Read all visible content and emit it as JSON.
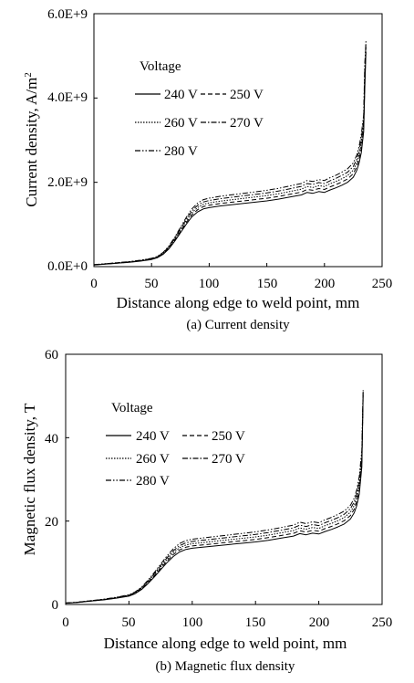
{
  "chart_data": [
    {
      "type": "line",
      "caption": "(a) Current density",
      "xlabel": "Distance along edge to weld point, mm",
      "ylabel_main": "Current density, A/m",
      "ylabel_sup": "2",
      "xlim": [
        0,
        250
      ],
      "ylim": [
        0,
        6000000000
      ],
      "x_ticks": [
        "0",
        "50",
        "100",
        "150",
        "200",
        "250"
      ],
      "y_ticks": [
        "0.0E+0",
        "2.0E+9",
        "4.0E+9",
        "6.0E+9"
      ],
      "grid": false,
      "legend": {
        "title": "Voltage",
        "position": "top-left"
      },
      "series": [
        {
          "name": "240 V",
          "dash": "solid",
          "x": [
            0,
            10,
            20,
            30,
            40,
            50,
            55,
            60,
            65,
            70,
            75,
            80,
            85,
            90,
            95,
            100,
            110,
            120,
            130,
            140,
            150,
            160,
            170,
            180,
            185,
            190,
            195,
            200,
            205,
            210,
            215,
            220,
            225,
            228,
            230,
            232,
            234,
            235,
            236
          ],
          "y": [
            40000000,
            60000000,
            80000000,
            100000000,
            130000000,
            170000000,
            210000000,
            290000000,
            420000000,
            600000000,
            800000000,
            1000000000,
            1180000000,
            1300000000,
            1370000000,
            1400000000,
            1440000000,
            1470000000,
            1500000000,
            1530000000,
            1560000000,
            1600000000,
            1650000000,
            1700000000,
            1760000000,
            1740000000,
            1780000000,
            1760000000,
            1820000000,
            1870000000,
            1930000000,
            2000000000,
            2120000000,
            2280000000,
            2450000000,
            2700000000,
            3200000000,
            4200000000,
            5100000000
          ]
        },
        {
          "name": "250 V",
          "dash": "dash",
          "x": [
            0,
            10,
            20,
            30,
            40,
            50,
            55,
            60,
            65,
            70,
            75,
            80,
            85,
            90,
            95,
            100,
            110,
            120,
            130,
            140,
            150,
            160,
            170,
            180,
            185,
            190,
            195,
            200,
            205,
            210,
            215,
            220,
            225,
            228,
            230,
            232,
            234,
            235,
            236
          ],
          "y": [
            42000000,
            62000000,
            83000000,
            104000000,
            135000000,
            177000000,
            218000000,
            302000000,
            437000000,
            624000000,
            832000000,
            1040000000,
            1227000000,
            1352000000,
            1425000000,
            1456000000,
            1498000000,
            1529000000,
            1560000000,
            1591000000,
            1622000000,
            1664000000,
            1716000000,
            1768000000,
            1830000000,
            1810000000,
            1851000000,
            1830000000,
            1893000000,
            1945000000,
            2007000000,
            2080000000,
            2205000000,
            2371000000,
            2548000000,
            2808000000,
            3300000000,
            4350000000,
            5200000000
          ]
        },
        {
          "name": "260 V",
          "dash": "dot",
          "x": [
            0,
            10,
            20,
            30,
            40,
            50,
            55,
            60,
            65,
            70,
            75,
            80,
            85,
            90,
            95,
            100,
            110,
            120,
            130,
            140,
            150,
            160,
            170,
            180,
            185,
            190,
            195,
            200,
            205,
            210,
            215,
            220,
            225,
            228,
            230,
            232,
            234,
            235,
            236
          ],
          "y": [
            43000000,
            65000000,
            86000000,
            108000000,
            140000000,
            184000000,
            227000000,
            313000000,
            454000000,
            648000000,
            864000000,
            1080000000,
            1274000000,
            1404000000,
            1480000000,
            1512000000,
            1555000000,
            1588000000,
            1620000000,
            1652000000,
            1685000000,
            1728000000,
            1782000000,
            1836000000,
            1901000000,
            1879000000,
            1922000000,
            1901000000,
            1966000000,
            2020000000,
            2084000000,
            2160000000,
            2290000000,
            2462000000,
            2646000000,
            2916000000,
            3400000000,
            4500000000,
            5250000000
          ]
        },
        {
          "name": "270 V",
          "dash": "dashdot",
          "x": [
            0,
            10,
            20,
            30,
            40,
            50,
            55,
            60,
            65,
            70,
            75,
            80,
            85,
            90,
            95,
            100,
            110,
            120,
            130,
            140,
            150,
            160,
            170,
            180,
            185,
            190,
            195,
            200,
            205,
            210,
            215,
            220,
            225,
            228,
            230,
            232,
            234,
            235,
            236
          ],
          "y": [
            45000000,
            67000000,
            90000000,
            112000000,
            146000000,
            190000000,
            235000000,
            325000000,
            470000000,
            672000000,
            896000000,
            1120000000,
            1322000000,
            1456000000,
            1534000000,
            1568000000,
            1613000000,
            1646000000,
            1680000000,
            1714000000,
            1747000000,
            1792000000,
            1848000000,
            1904000000,
            1971000000,
            1949000000,
            1994000000,
            1971000000,
            2038000000,
            2094000000,
            2162000000,
            2240000000,
            2374000000,
            2554000000,
            2744000000,
            3024000000,
            3500000000,
            4650000000,
            5300000000
          ]
        },
        {
          "name": "280 V",
          "dash": "dashdotdot",
          "x": [
            0,
            10,
            20,
            30,
            40,
            50,
            55,
            60,
            65,
            70,
            75,
            80,
            85,
            90,
            95,
            100,
            110,
            120,
            130,
            140,
            150,
            160,
            170,
            180,
            185,
            190,
            195,
            200,
            205,
            210,
            215,
            220,
            225,
            228,
            230,
            232,
            234,
            235,
            236
          ],
          "y": [
            46000000,
            70000000,
            93000000,
            116000000,
            151000000,
            197000000,
            244000000,
            336000000,
            487000000,
            696000000,
            928000000,
            1160000000,
            1369000000,
            1508000000,
            1589000000,
            1624000000,
            1670000000,
            1705000000,
            1740000000,
            1775000000,
            1810000000,
            1856000000,
            1914000000,
            1972000000,
            2042000000,
            2018000000,
            2065000000,
            2042000000,
            2111000000,
            2169000000,
            2239000000,
            2320000000,
            2459000000,
            2645000000,
            2842000000,
            3132000000,
            3600000000,
            4800000000,
            5350000000
          ]
        }
      ]
    },
    {
      "type": "line",
      "caption": "(b) Magnetic flux density",
      "xlabel": "Distance along edge to weld point, mm",
      "ylabel_main": "Magnetic flux density, T",
      "ylabel_sup": "",
      "xlim": [
        0,
        250
      ],
      "ylim": [
        0,
        60
      ],
      "x_ticks": [
        "0",
        "50",
        "100",
        "150",
        "200",
        "250"
      ],
      "y_ticks": [
        "0",
        "20",
        "40",
        "60"
      ],
      "grid": false,
      "legend": {
        "title": "Voltage",
        "position": "top-left"
      },
      "series": [
        {
          "name": "240 V",
          "dash": "solid",
          "x": [
            0,
            10,
            20,
            30,
            40,
            50,
            55,
            60,
            65,
            70,
            75,
            80,
            85,
            90,
            95,
            100,
            110,
            120,
            130,
            140,
            150,
            160,
            170,
            180,
            185,
            190,
            195,
            200,
            205,
            210,
            215,
            220,
            225,
            228,
            230,
            232,
            234,
            235
          ],
          "y": [
            0.3,
            0.5,
            0.8,
            1.1,
            1.5,
            2.0,
            2.6,
            3.6,
            5.0,
            6.6,
            8.3,
            10.0,
            11.5,
            12.6,
            13.2,
            13.5,
            13.8,
            14.1,
            14.4,
            14.7,
            15.0,
            15.4,
            15.9,
            16.4,
            17.0,
            16.7,
            17.1,
            16.9,
            17.5,
            18.0,
            18.6,
            19.3,
            20.5,
            22.0,
            23.7,
            26.5,
            33.0,
            50.0
          ]
        },
        {
          "name": "250 V",
          "dash": "dash",
          "x": [
            0,
            10,
            20,
            30,
            40,
            50,
            55,
            60,
            65,
            70,
            75,
            80,
            85,
            90,
            95,
            100,
            110,
            120,
            130,
            140,
            150,
            160,
            170,
            180,
            185,
            190,
            195,
            200,
            205,
            210,
            215,
            220,
            225,
            228,
            230,
            232,
            234,
            235
          ],
          "y": [
            0.31,
            0.52,
            0.83,
            1.14,
            1.56,
            2.08,
            2.7,
            3.74,
            5.2,
            6.86,
            8.63,
            10.4,
            11.96,
            13.1,
            13.73,
            14.04,
            14.35,
            14.66,
            14.98,
            15.29,
            15.6,
            16.02,
            16.54,
            17.06,
            17.68,
            17.37,
            17.78,
            17.58,
            18.2,
            18.72,
            19.34,
            20.07,
            21.32,
            22.88,
            24.65,
            27.56,
            34.0,
            50.5
          ]
        },
        {
          "name": "260 V",
          "dash": "dot",
          "x": [
            0,
            10,
            20,
            30,
            40,
            50,
            55,
            60,
            65,
            70,
            75,
            80,
            85,
            90,
            95,
            100,
            110,
            120,
            130,
            140,
            150,
            160,
            170,
            180,
            185,
            190,
            195,
            200,
            205,
            210,
            215,
            220,
            225,
            228,
            230,
            232,
            234,
            235
          ],
          "y": [
            0.32,
            0.54,
            0.86,
            1.19,
            1.62,
            2.16,
            2.81,
            3.89,
            5.4,
            7.13,
            8.96,
            10.8,
            12.42,
            13.61,
            14.26,
            14.58,
            14.9,
            15.23,
            15.55,
            15.88,
            16.2,
            16.63,
            17.17,
            17.71,
            18.36,
            18.04,
            18.47,
            18.25,
            18.9,
            19.44,
            20.09,
            20.84,
            22.14,
            23.76,
            25.6,
            28.62,
            35.0,
            50.8
          ]
        },
        {
          "name": "270 V",
          "dash": "dashdot",
          "x": [
            0,
            10,
            20,
            30,
            40,
            50,
            55,
            60,
            65,
            70,
            75,
            80,
            85,
            90,
            95,
            100,
            110,
            120,
            130,
            140,
            150,
            160,
            170,
            180,
            185,
            190,
            195,
            200,
            205,
            210,
            215,
            220,
            225,
            228,
            230,
            232,
            234,
            235
          ],
          "y": [
            0.34,
            0.56,
            0.9,
            1.23,
            1.68,
            2.24,
            2.91,
            4.03,
            5.6,
            7.39,
            9.3,
            11.2,
            12.88,
            14.11,
            14.78,
            15.12,
            15.46,
            15.79,
            16.13,
            16.46,
            16.8,
            17.25,
            17.81,
            18.37,
            19.04,
            18.7,
            19.15,
            18.93,
            19.6,
            20.16,
            20.83,
            21.62,
            22.96,
            24.64,
            26.54,
            29.68,
            36.0,
            51.1
          ]
        },
        {
          "name": "280 V",
          "dash": "dashdotdot",
          "x": [
            0,
            10,
            20,
            30,
            40,
            50,
            55,
            60,
            65,
            70,
            75,
            80,
            85,
            90,
            95,
            100,
            110,
            120,
            130,
            140,
            150,
            160,
            170,
            180,
            185,
            190,
            195,
            200,
            205,
            210,
            215,
            220,
            225,
            228,
            230,
            232,
            234,
            235
          ],
          "y": [
            0.35,
            0.58,
            0.93,
            1.28,
            1.74,
            2.32,
            3.02,
            4.18,
            5.8,
            7.66,
            9.63,
            11.6,
            13.34,
            14.62,
            15.31,
            15.66,
            16.01,
            16.36,
            16.7,
            17.05,
            17.4,
            17.86,
            18.44,
            19.02,
            19.72,
            19.37,
            19.84,
            19.6,
            20.3,
            20.88,
            21.58,
            22.39,
            23.78,
            25.52,
            27.49,
            30.74,
            37.0,
            51.4
          ]
        }
      ]
    }
  ]
}
